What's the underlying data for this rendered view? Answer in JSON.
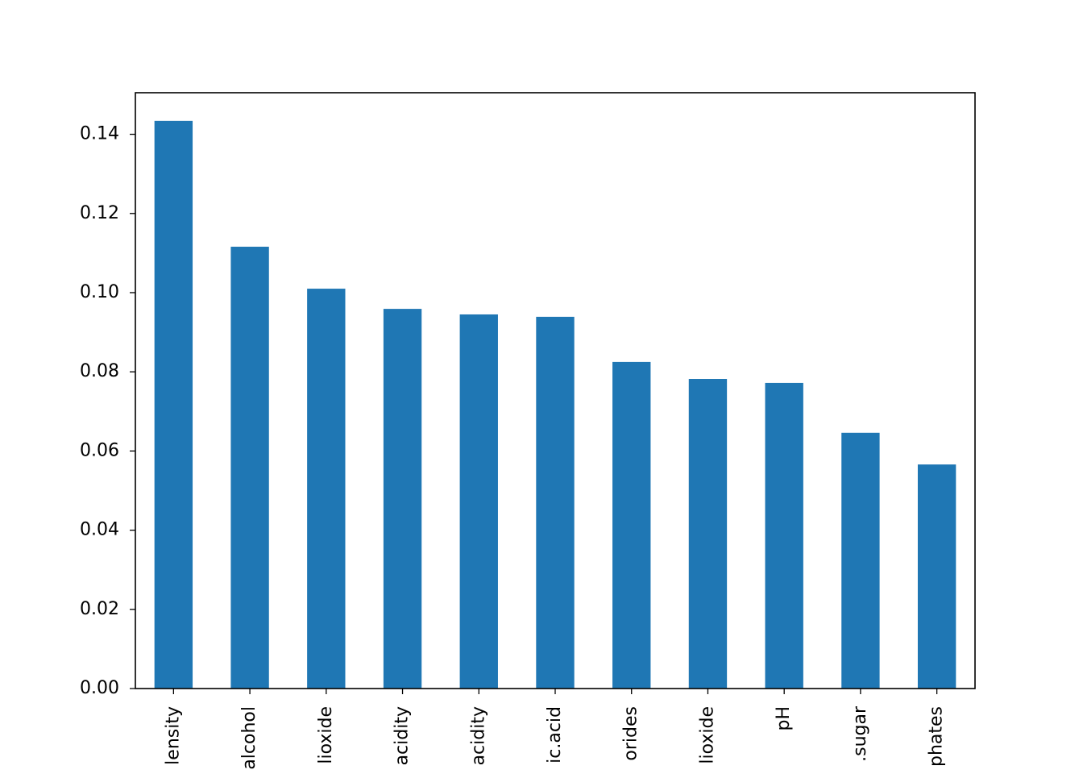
{
  "chart_data": {
    "type": "bar",
    "categories": [
      "lensity",
      "alcohol",
      "lioxide",
      "acidity",
      "acidity",
      "ic.acid",
      "orides",
      "lioxide",
      "pH",
      ".sugar",
      "phates"
    ],
    "values": [
      0.1434,
      0.1116,
      0.101,
      0.0959,
      0.0945,
      0.0939,
      0.0825,
      0.0782,
      0.0772,
      0.0646,
      0.0566
    ],
    "color": "#1f77b4",
    "ylim": [
      0,
      0.1505
    ],
    "yticks": [
      {
        "value": 0,
        "label": "0.00"
      },
      {
        "value": 0.02,
        "label": "0.02"
      },
      {
        "value": 0.04,
        "label": "0.04"
      },
      {
        "value": 0.06,
        "label": "0.06"
      },
      {
        "value": 0.08,
        "label": "0.08"
      },
      {
        "value": 0.1,
        "label": "0.10"
      },
      {
        "value": 0.12,
        "label": "0.12"
      },
      {
        "value": 0.14,
        "label": "0.14"
      }
    ],
    "grid": false
  }
}
